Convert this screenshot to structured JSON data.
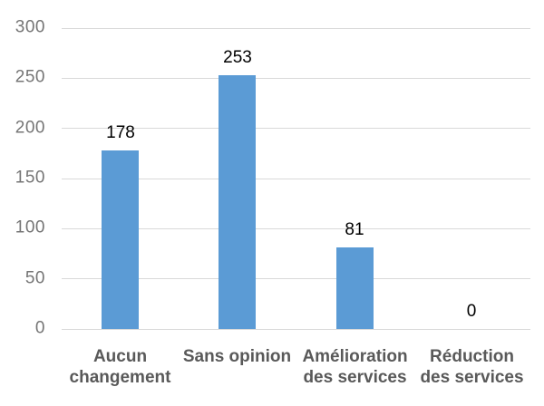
{
  "chart_data": {
    "type": "bar",
    "title": "",
    "categories": [
      "Aucun changement",
      "Sans opinion",
      "Amélioration des services",
      "Réduction des services"
    ],
    "values": [
      178,
      253,
      81,
      0
    ],
    "data_labels": [
      "178",
      "253",
      "81",
      "0"
    ],
    "y_ticks": [
      0,
      50,
      100,
      150,
      200,
      250,
      300
    ],
    "ylim": [
      0,
      300
    ],
    "xlabel": "",
    "ylabel": "",
    "grid": true,
    "legend": false,
    "colors": {
      "bar": "#5B9BD5",
      "gridline": "#D9D9D9",
      "tick_label": "#757575",
      "category_label": "#595959",
      "value_label": "#000000",
      "background": "#FFFFFF"
    }
  }
}
